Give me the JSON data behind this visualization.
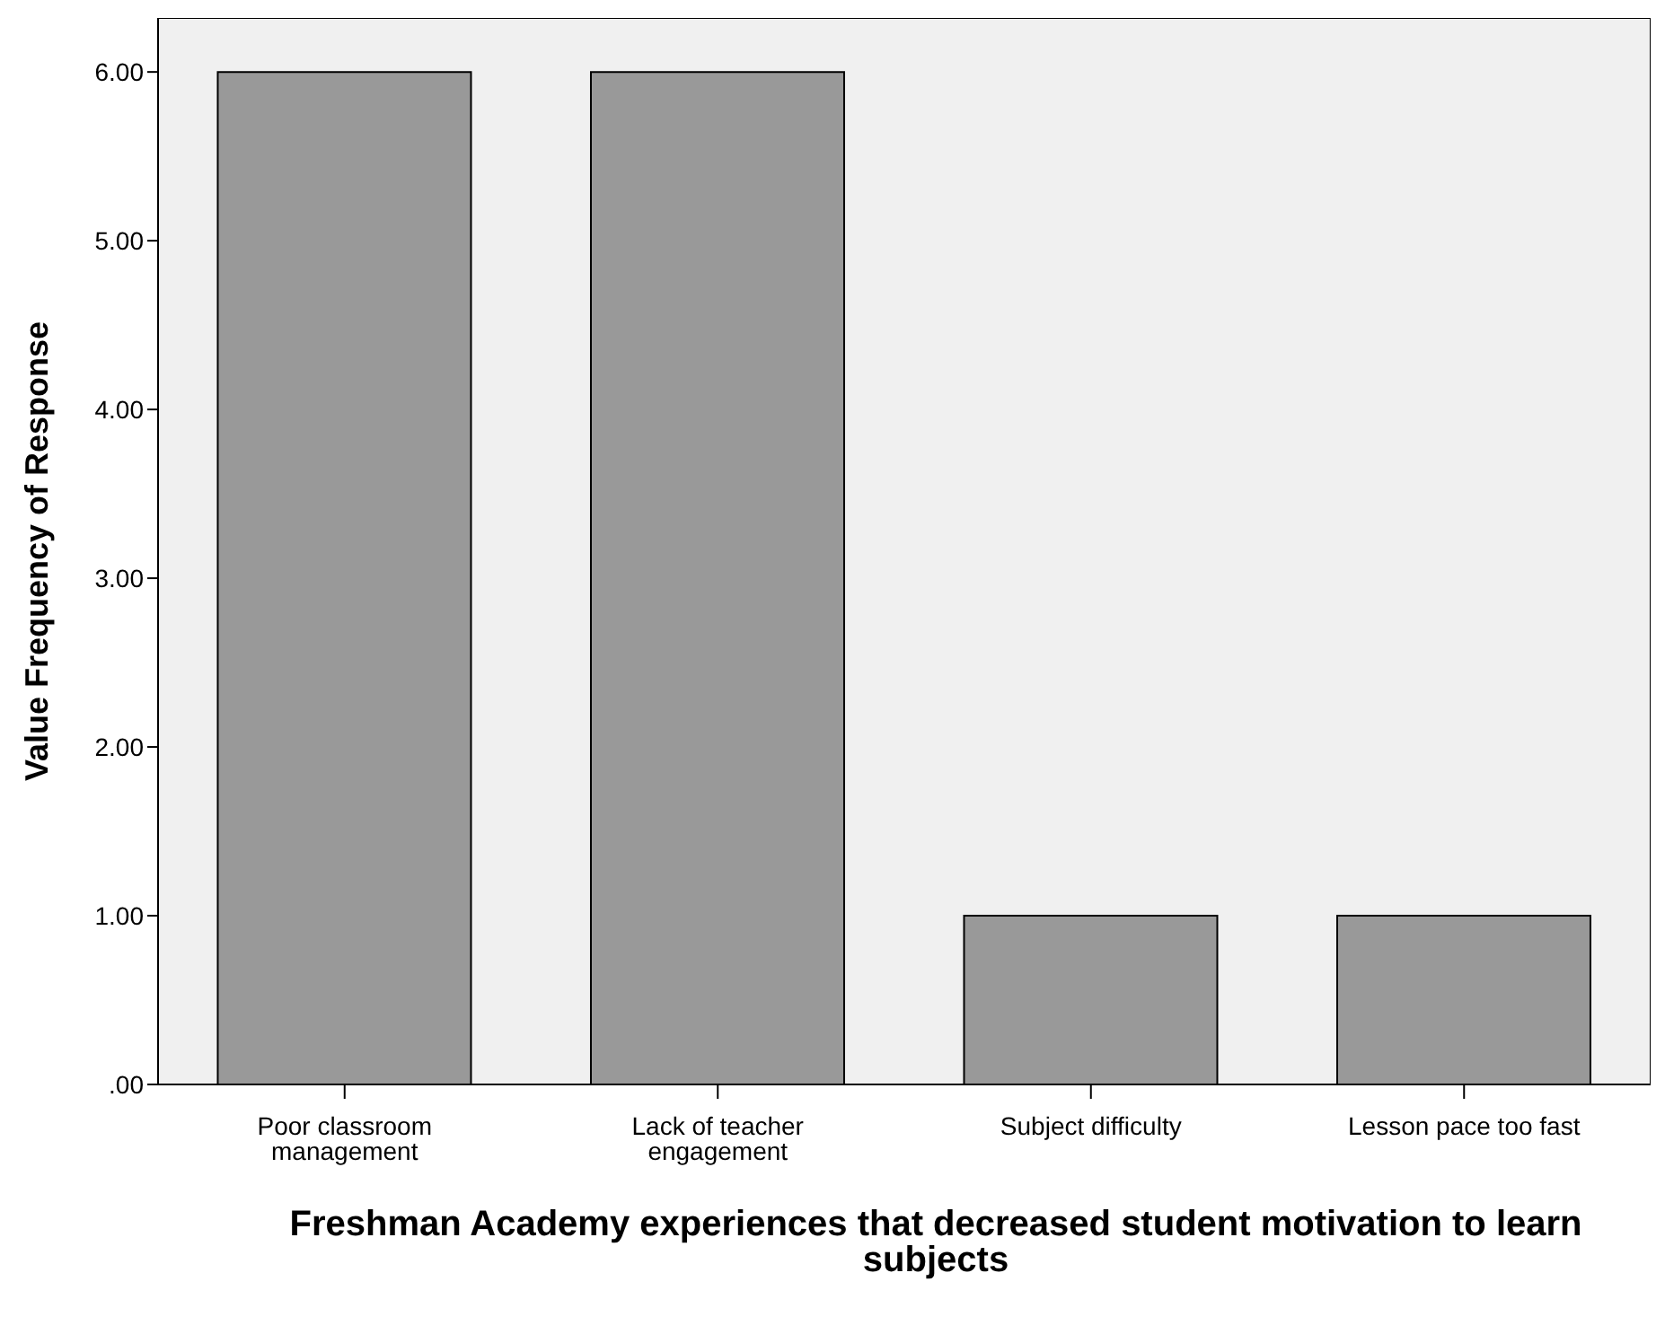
{
  "chart_data": {
    "type": "bar",
    "xlabel": "Freshman Academy experiences that decreased student motivation to learn subjects",
    "ylabel": "Value Frequency of Response",
    "categories": [
      "Poor classroom management",
      "Lack of teacher engagement",
      "Subject difficulty",
      "Lesson pace too fast"
    ],
    "values": [
      6,
      6,
      1,
      1
    ],
    "color": "#999999",
    "ylim": [
      0,
      6.32
    ],
    "yticks": [
      {
        "value": 0,
        "label": ".00"
      },
      {
        "value": 1,
        "label": "1.00"
      },
      {
        "value": 2,
        "label": "2.00"
      },
      {
        "value": 3,
        "label": "3.00"
      },
      {
        "value": 4,
        "label": "4.00"
      },
      {
        "value": 5,
        "label": "5.00"
      },
      {
        "value": 6,
        "label": "6.00"
      }
    ],
    "grid": false,
    "legend": false
  }
}
